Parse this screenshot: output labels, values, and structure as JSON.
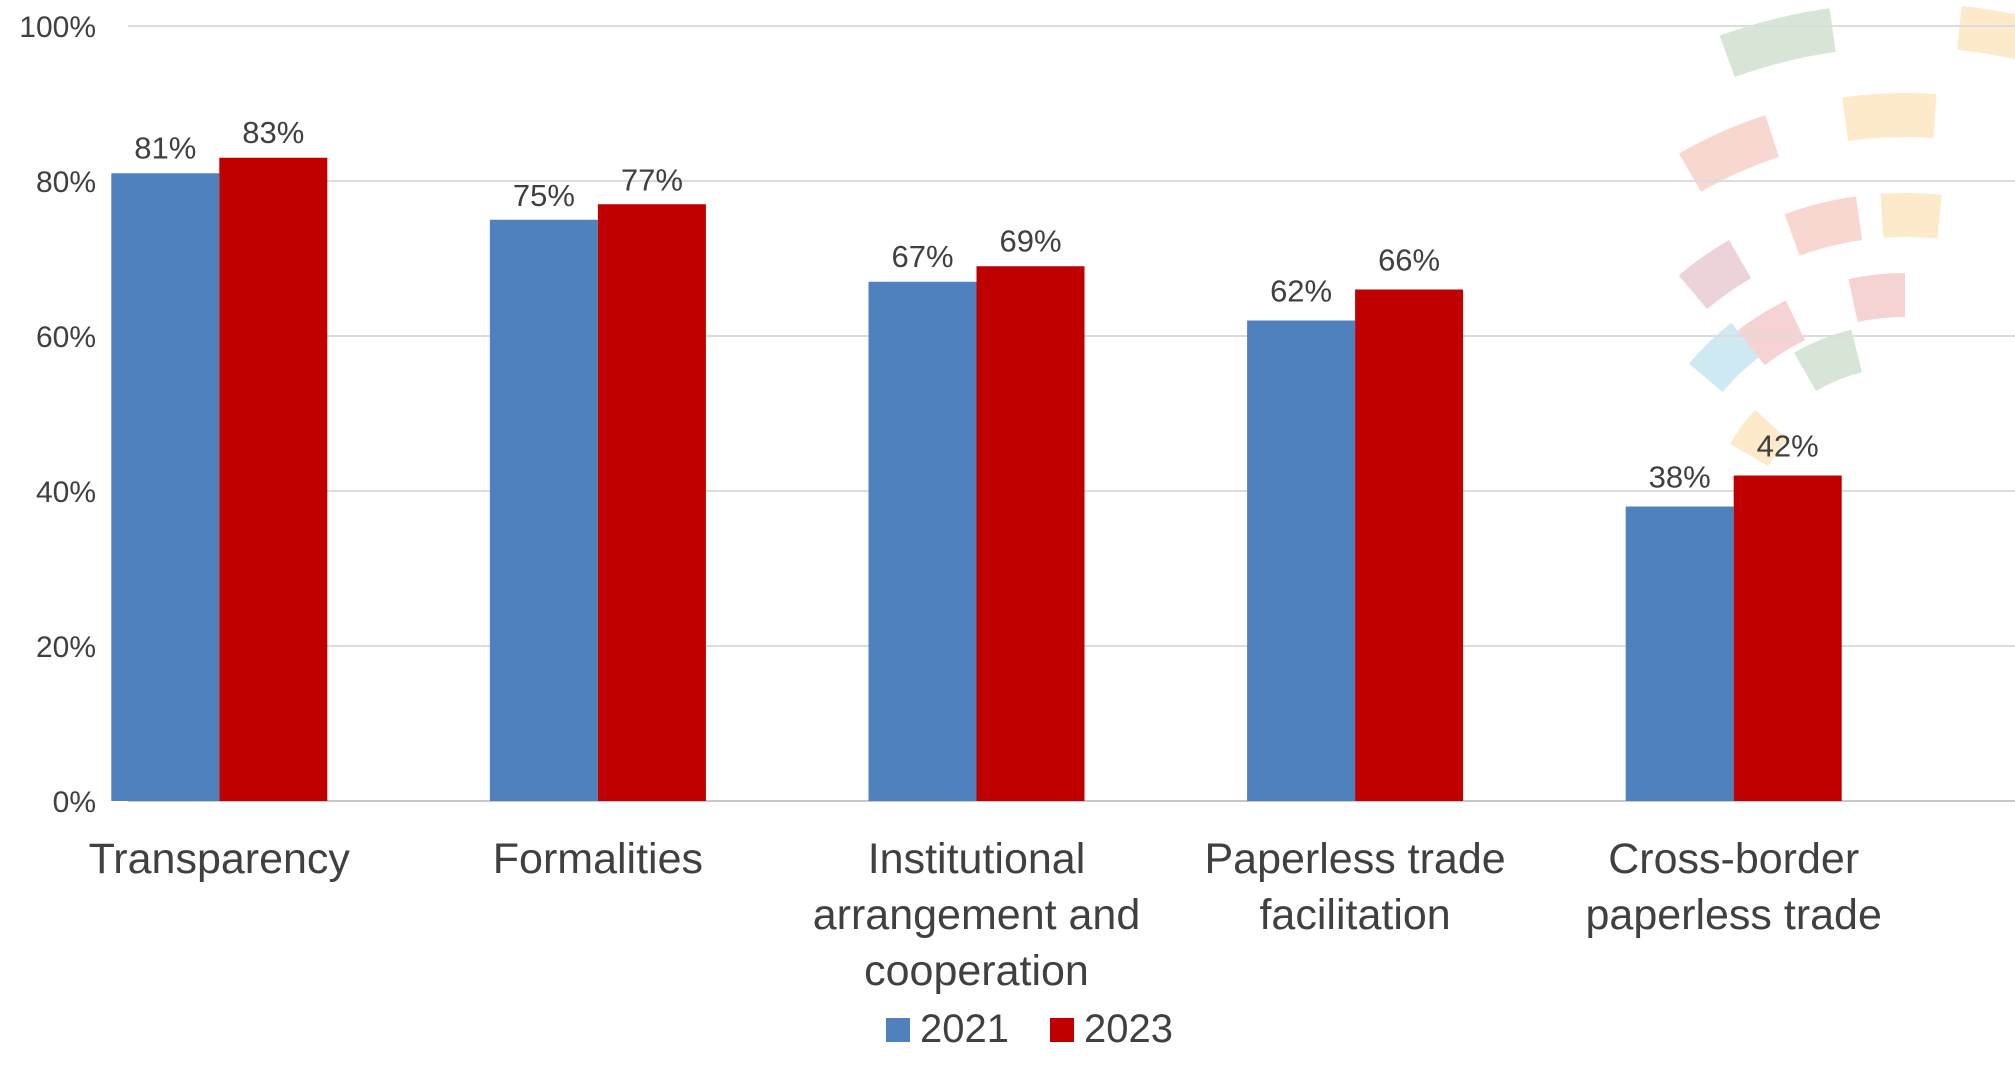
{
  "chart_data": {
    "type": "bar",
    "title": "",
    "xlabel": "",
    "ylabel": "",
    "ylim": [
      0,
      100
    ],
    "yticks": [
      0,
      20,
      40,
      60,
      80,
      100
    ],
    "ytick_labels": [
      "0%",
      "20%",
      "40%",
      "60%",
      "80%",
      "100%"
    ],
    "grid": true,
    "legend_position": "bottom",
    "categories": [
      "Transparency",
      "Formalities",
      "Institutional arrangement and cooperation",
      "Paperless trade facilitation",
      "Cross-border paperless trade"
    ],
    "series": [
      {
        "name": "2021",
        "color": "#4f81bd",
        "values": [
          81,
          75,
          67,
          62,
          38
        ],
        "labels": [
          "81%",
          "75%",
          "67%",
          "62%",
          "38%"
        ]
      },
      {
        "name": "2023",
        "color": "#c00000",
        "values": [
          83,
          77,
          69,
          66,
          42
        ],
        "labels": [
          "83%",
          "77%",
          "69%",
          "66%",
          "42%"
        ]
      }
    ]
  },
  "decor_colors": [
    "#c8dcc8",
    "#fbe3b8",
    "#f6c9c0",
    "#e6c3cc",
    "#bfe2ee",
    "#f3c4c4"
  ]
}
